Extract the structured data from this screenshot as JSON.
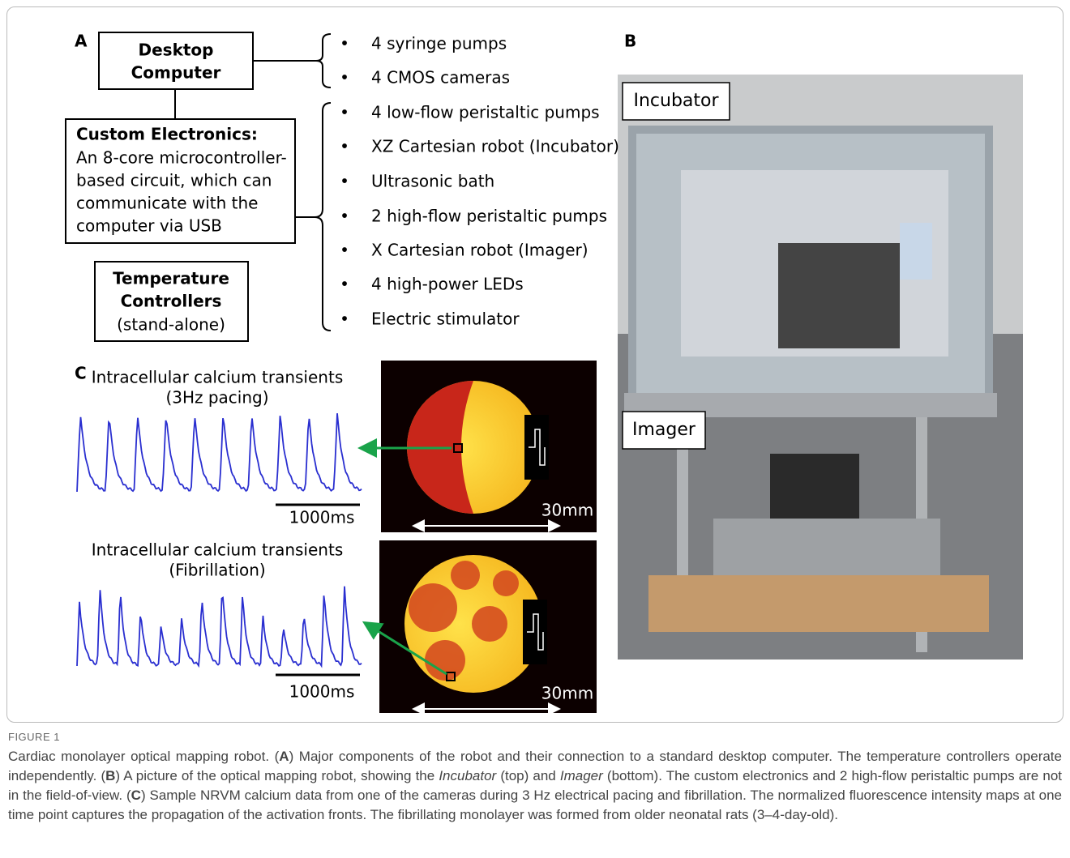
{
  "panel_a": {
    "label": "A",
    "computer": [
      "Desktop",
      "Computer"
    ],
    "electronics": {
      "title": "Custom Electronics:",
      "lines": [
        "An 8-core microcontroller-",
        "based circuit, which can",
        "communicate with the",
        "computer via USB"
      ]
    },
    "temperature": [
      "Temperature",
      "Controllers",
      "(stand-alone)"
    ],
    "computer_devices": [
      "4 syringe pumps",
      "4 CMOS cameras"
    ],
    "electronics_devices": [
      "4 low-flow peristaltic pumps",
      "XZ Cartesian robot (Incubator)",
      "Ultrasonic bath",
      "2 high-flow peristaltic pumps",
      "X Cartesian robot (Imager)",
      "4 high-power LEDs",
      "Electric stimulator"
    ],
    "bullet": "•"
  },
  "panel_b": {
    "label": "B",
    "incubator": "Incubator",
    "imager": "Imager"
  },
  "panel_c": {
    "label": "C",
    "recordings": [
      {
        "title": [
          "Intracellular calcium transients",
          "(3Hz pacing)"
        ],
        "time_scale": "1000ms",
        "space_scale": "30mm"
      },
      {
        "title": [
          "Intracellular calcium transients",
          "(Fibrillation)"
        ],
        "time_scale": "1000ms",
        "space_scale": "30mm"
      }
    ]
  },
  "caption": {
    "label": "FIGURE 1",
    "segments": [
      "Cardiac monolayer optical mapping robot. (",
      "A",
      ") Major components of the robot and their connection to a standard desktop computer. The temperature controllers operate independently. (",
      "B",
      ") A picture of the optical mapping robot, showing the ",
      "Incubator",
      " (top) and ",
      "Imager",
      " (bottom). The custom electronics and 2 high-flow peristaltic pumps are not in the field-of-view. (",
      "C",
      ") Sample NRVM calcium data from one of the cameras during 3 Hz electrical pacing and fibrillation. The normalized fluorescence intensity maps at one time point captures the propagation of the activation fronts. The fibrillating monolayer was formed from older neonatal rats (3–4-day-old)."
    ]
  }
}
